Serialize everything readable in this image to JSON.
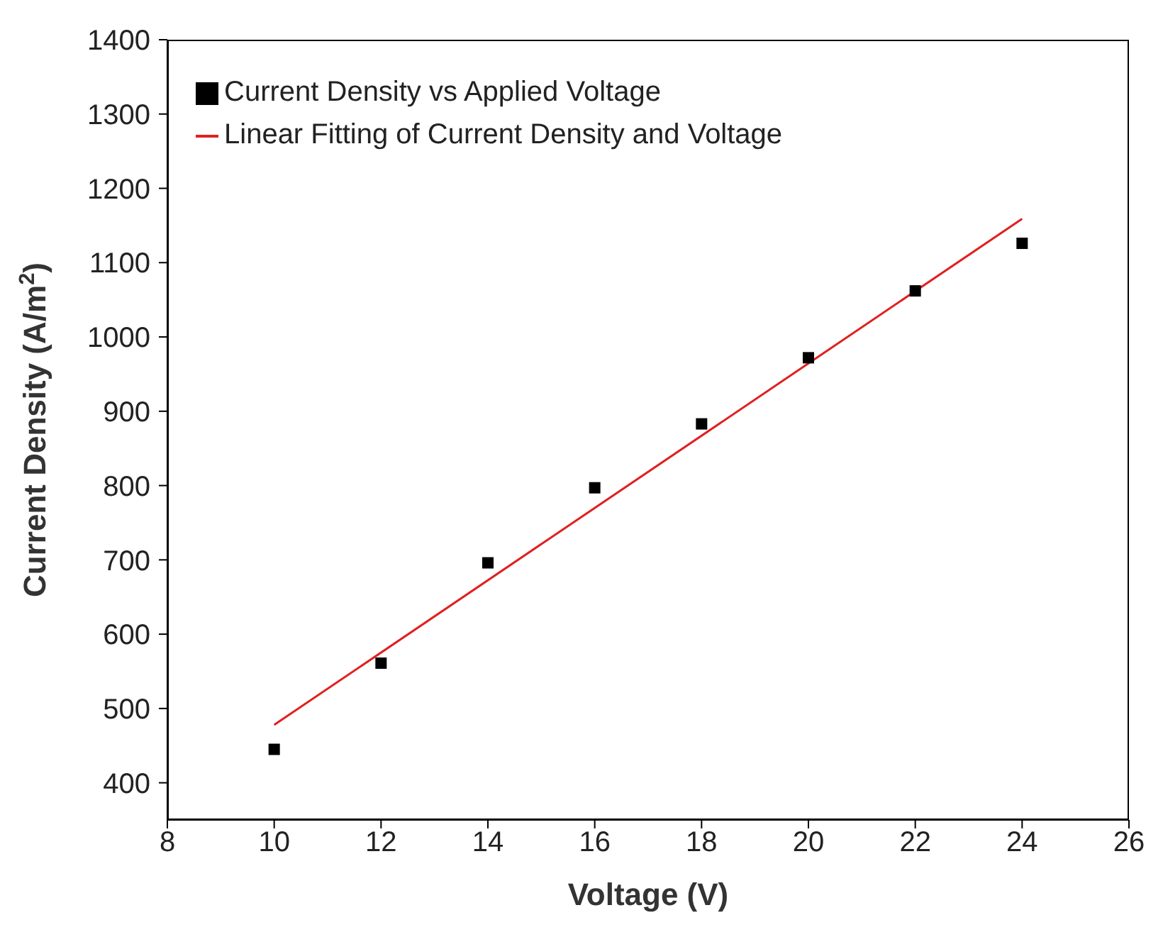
{
  "chart_data": {
    "type": "scatter",
    "xlabel": "Voltage (V)",
    "ylabel": "Current Density (A/m$^{2}$)",
    "xlim": [
      8,
      26
    ],
    "xticks": [
      8,
      10,
      12,
      14,
      16,
      18,
      20,
      22,
      24,
      26
    ],
    "ylim": [
      350,
      1400
    ],
    "yticks": [
      400,
      500,
      600,
      700,
      800,
      900,
      1000,
      1100,
      1200,
      1300,
      1400
    ],
    "grid": false,
    "legend": "top left",
    "marker": "square",
    "series": [
      {
        "name": "Current Density vs Applied Voltage",
        "color": "#000000",
        "x": [
          10,
          12,
          14,
          16,
          18,
          20,
          22,
          24
        ],
        "values": [
          445,
          561,
          696,
          797,
          883,
          972,
          1062,
          1126
        ]
      },
      {
        "name": "Linear Fitting of Current Density and Voltage",
        "type": "line",
        "color": "#e02020",
        "line_style": "solid",
        "marker": "none",
        "x": [
          10,
          24
        ],
        "values": [
          478,
          1159
        ]
      }
    ]
  }
}
